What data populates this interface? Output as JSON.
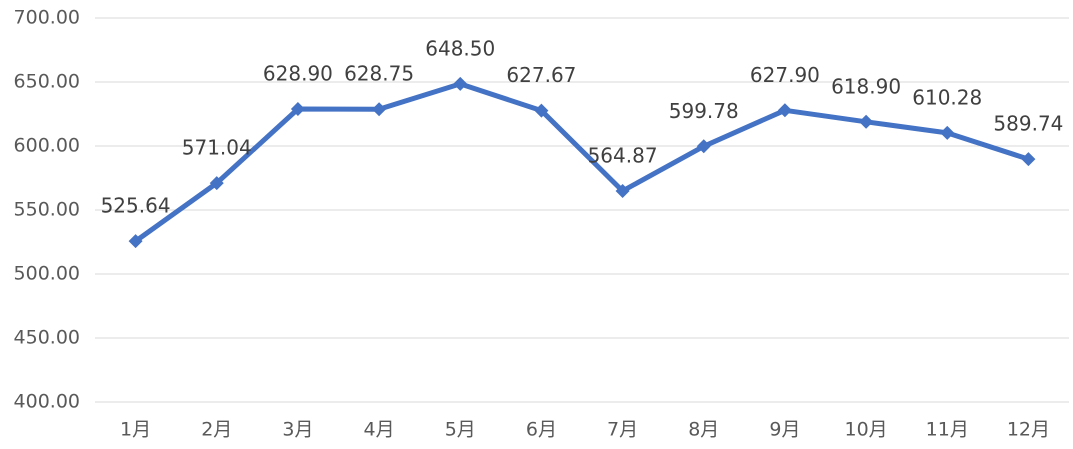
{
  "chart_data": {
    "type": "line",
    "categories": [
      "1月",
      "2月",
      "3月",
      "4月",
      "5月",
      "6月",
      "7月",
      "8月",
      "9月",
      "10月",
      "11月",
      "12月"
    ],
    "values": [
      525.64,
      571.04,
      628.9,
      628.75,
      648.5,
      627.67,
      564.87,
      599.78,
      627.9,
      618.9,
      610.28,
      589.74
    ],
    "value_labels": [
      "525.64",
      "571.04",
      "628.90",
      "628.75",
      "648.50",
      "627.67",
      "564.87",
      "599.78",
      "627.90",
      "618.90",
      "610.28",
      "589.74"
    ],
    "color": "#4472c4",
    "ylim": [
      400,
      700
    ],
    "yticks": [
      {
        "value": 400,
        "label": "400.00"
      },
      {
        "value": 450,
        "label": "450.00"
      },
      {
        "value": 500,
        "label": "500.00"
      },
      {
        "value": 550,
        "label": "550.00"
      },
      {
        "value": 600,
        "label": "600.00"
      },
      {
        "value": 650,
        "label": "650.00"
      },
      {
        "value": 700,
        "label": "700.00"
      }
    ],
    "grid": true
  }
}
